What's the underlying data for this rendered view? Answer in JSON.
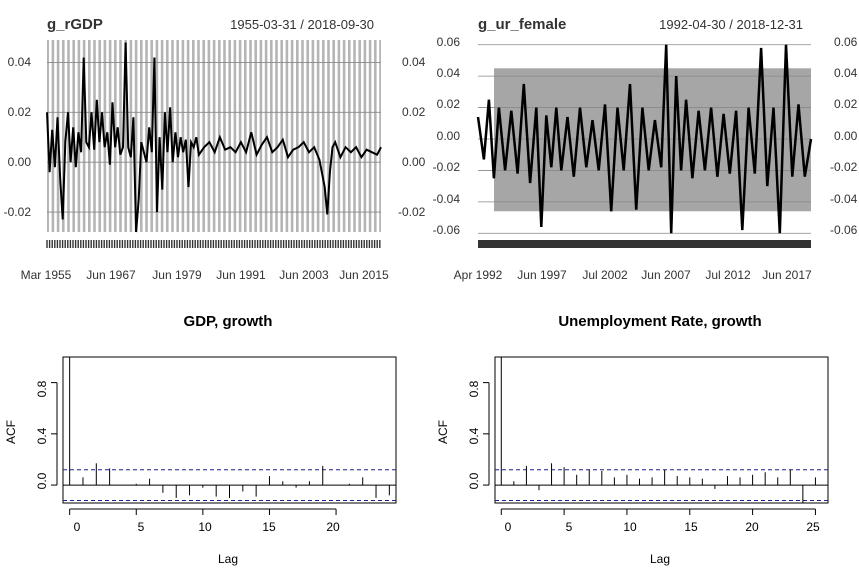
{
  "chart_data": [
    {
      "type": "line",
      "title": "g_rGDP",
      "date_range": "1955-03-31 / 2018-09-30",
      "x_tick_labels": [
        "Mar 1955",
        "Jun 1967",
        "Jun 1979",
        "Jun 1991",
        "Jun 2003",
        "Jun 2015"
      ],
      "y_tick_labels": [
        "0.04",
        "0.02",
        "0.00",
        "-0.02"
      ],
      "y_ticks": [
        0.04,
        0.02,
        0.0,
        -0.02
      ],
      "ylim": [
        -0.028,
        0.049
      ],
      "xlim": [
        1955.0,
        2018.75
      ],
      "recession_bars": true,
      "series": [
        {
          "color": "#000000",
          "x": [
            1955.0,
            1955.5,
            1956.0,
            1956.5,
            1957.0,
            1957.5,
            1958.0,
            1958.5,
            1959.0,
            1959.5,
            1960.0,
            1960.5,
            1961.0,
            1961.5,
            1962.0,
            1962.5,
            1963.0,
            1963.5,
            1964.0,
            1964.5,
            1965.0,
            1965.5,
            1966.0,
            1966.5,
            1967.0,
            1967.5,
            1968.0,
            1968.5,
            1969.0,
            1969.5,
            1970.0,
            1970.5,
            1971.0,
            1971.5,
            1972.0,
            1972.5,
            1973.0,
            1973.5,
            1974.0,
            1974.5,
            1975.0,
            1975.5,
            1976.0,
            1976.5,
            1977.0,
            1977.5,
            1978.0,
            1978.5,
            1979.0,
            1979.5,
            1980.0,
            1980.5,
            1981.0,
            1981.5,
            1982.0,
            1982.5,
            1983.0,
            1983.5,
            1984.0,
            1985.0,
            1986.0,
            1987.0,
            1988.0,
            1989.0,
            1990.0,
            1991.0,
            1992.0,
            1993.0,
            1994.0,
            1995.0,
            1996.0,
            1997.0,
            1998.0,
            1999.0,
            2000.0,
            2001.0,
            2002.0,
            2003.0,
            2004.0,
            2005.0,
            2006.0,
            2007.0,
            2008.0,
            2008.5,
            2009.0,
            2009.5,
            2010.0,
            2011.0,
            2012.0,
            2013.0,
            2014.0,
            2015.0,
            2016.0,
            2017.0,
            2018.0,
            2018.75
          ],
          "y": [
            0.02,
            -0.004,
            0.013,
            -0.002,
            0.018,
            -0.006,
            -0.023,
            0.008,
            0.02,
            0.0,
            0.014,
            -0.002,
            0.012,
            0.004,
            0.042,
            0.008,
            0.006,
            0.02,
            0.005,
            0.025,
            0.008,
            0.02,
            0.006,
            0.012,
            -0.001,
            0.024,
            0.006,
            0.014,
            0.003,
            0.006,
            0.048,
            0.006,
            0.002,
            0.018,
            -0.028,
            -0.015,
            0.008,
            0.004,
            0.0,
            0.014,
            0.004,
            0.042,
            -0.02,
            0.01,
            -0.011,
            0.02,
            0.004,
            0.022,
            0.0,
            0.012,
            0.002,
            0.01,
            0.004,
            0.009,
            -0.01,
            0.008,
            0.006,
            0.01,
            0.003,
            0.006,
            0.008,
            0.004,
            0.01,
            0.005,
            0.006,
            0.004,
            0.008,
            0.004,
            0.012,
            0.003,
            0.007,
            0.01,
            0.004,
            0.006,
            0.009,
            0.002,
            0.005,
            0.006,
            0.008,
            0.004,
            0.006,
            0.001,
            -0.01,
            -0.021,
            -0.004,
            0.006,
            0.008,
            0.002,
            0.006,
            0.004,
            0.006,
            0.002,
            0.005,
            0.004,
            0.003,
            0.006
          ]
        }
      ]
    },
    {
      "type": "line",
      "title": "g_ur_female",
      "date_range": "1992-04-30 / 2018-12-31",
      "x_tick_labels": [
        "Apr 1992",
        "Jun 1997",
        "Jul 2002",
        "Jun 2007",
        "Jul 2012",
        "Jun 2017"
      ],
      "y_tick_labels": [
        "0.06",
        "0.04",
        "0.02",
        "0.00",
        "-0.02",
        "-0.04",
        "-0.06"
      ],
      "y_ticks": [
        0.06,
        0.04,
        0.02,
        0.0,
        -0.02,
        -0.04,
        -0.06
      ],
      "ylim": [
        -0.063,
        0.063
      ],
      "xlim": [
        1992.33,
        2019.0
      ],
      "shaded_band": [
        -0.046,
        0.045
      ],
      "series": [
        {
          "color": "#000000",
          "x": [
            1992.33,
            1992.8,
            1993.2,
            1993.6,
            1994.0,
            1994.5,
            1995.0,
            1995.5,
            1996.0,
            1996.5,
            1997.0,
            1997.4,
            1997.8,
            1998.2,
            1998.6,
            1999.0,
            1999.5,
            2000.0,
            2000.5,
            2001.0,
            2001.5,
            2002.0,
            2002.5,
            2003.0,
            2003.5,
            2004.0,
            2004.5,
            2005.0,
            2005.5,
            2006.0,
            2006.5,
            2007.0,
            2007.4,
            2007.8,
            2008.2,
            2008.6,
            2009.0,
            2009.5,
            2010.0,
            2010.5,
            2011.0,
            2011.5,
            2012.0,
            2012.5,
            2013.0,
            2013.5,
            2014.0,
            2014.5,
            2015.0,
            2015.5,
            2016.0,
            2016.5,
            2017.0,
            2017.5,
            2018.0,
            2018.5,
            2019.0
          ],
          "y": [
            0.014,
            -0.013,
            0.025,
            -0.025,
            0.02,
            -0.02,
            0.018,
            -0.022,
            0.035,
            -0.028,
            0.02,
            -0.056,
            0.015,
            -0.018,
            0.02,
            -0.02,
            0.014,
            -0.024,
            0.02,
            -0.018,
            0.012,
            -0.02,
            0.022,
            -0.046,
            0.02,
            -0.02,
            0.035,
            -0.045,
            0.02,
            -0.02,
            0.012,
            -0.018,
            0.06,
            -0.06,
            0.04,
            -0.02,
            0.025,
            -0.025,
            0.018,
            -0.02,
            0.02,
            -0.024,
            0.016,
            -0.022,
            0.018,
            -0.058,
            0.02,
            -0.022,
            0.058,
            -0.03,
            0.02,
            -0.06,
            0.06,
            -0.024,
            0.022,
            -0.024,
            0.0
          ]
        }
      ]
    },
    {
      "type": "bar",
      "title": "GDP, growth",
      "xlabel": "Lag",
      "ylabel": "ACF",
      "x_tick_labels": [
        "0",
        "5",
        "10",
        "15",
        "20"
      ],
      "y_tick_labels": [
        "0.0",
        "0.4",
        "0.8"
      ],
      "xlim": [
        -0.5,
        24.5
      ],
      "ylim": [
        -0.14,
        1.0
      ],
      "ci": 0.12,
      "x": [
        0,
        1,
        2,
        3,
        4,
        5,
        6,
        7,
        8,
        9,
        10,
        11,
        12,
        13,
        14,
        15,
        16,
        17,
        18,
        19,
        20,
        21,
        22,
        23,
        24
      ],
      "values": [
        1.0,
        0.06,
        0.17,
        0.13,
        0.0,
        0.01,
        0.05,
        -0.06,
        -0.1,
        -0.08,
        -0.02,
        -0.09,
        -0.1,
        -0.05,
        -0.09,
        0.07,
        0.03,
        -0.02,
        0.03,
        0.15,
        0.0,
        0.01,
        0.06,
        -0.1,
        -0.08
      ]
    },
    {
      "type": "bar",
      "title": "Unemployment Rate, growth",
      "xlabel": "Lag",
      "ylabel": "ACF",
      "x_tick_labels": [
        "0",
        "5",
        "10",
        "15",
        "20",
        "25"
      ],
      "y_tick_labels": [
        "0.0",
        "0.4",
        "0.8"
      ],
      "xlim": [
        -0.5,
        26.0
      ],
      "ylim": [
        -0.14,
        1.0
      ],
      "ci": 0.12,
      "x": [
        0,
        1,
        2,
        3,
        4,
        5,
        6,
        7,
        8,
        9,
        10,
        11,
        12,
        13,
        14,
        15,
        16,
        17,
        18,
        19,
        20,
        21,
        22,
        23,
        24,
        25
      ],
      "values": [
        1.0,
        0.03,
        0.15,
        -0.04,
        0.17,
        0.14,
        0.08,
        0.12,
        0.11,
        0.06,
        0.08,
        0.05,
        0.06,
        0.12,
        0.07,
        0.06,
        0.05,
        -0.03,
        0.07,
        0.06,
        0.08,
        0.1,
        0.06,
        0.12,
        -0.14,
        0.06
      ]
    }
  ]
}
